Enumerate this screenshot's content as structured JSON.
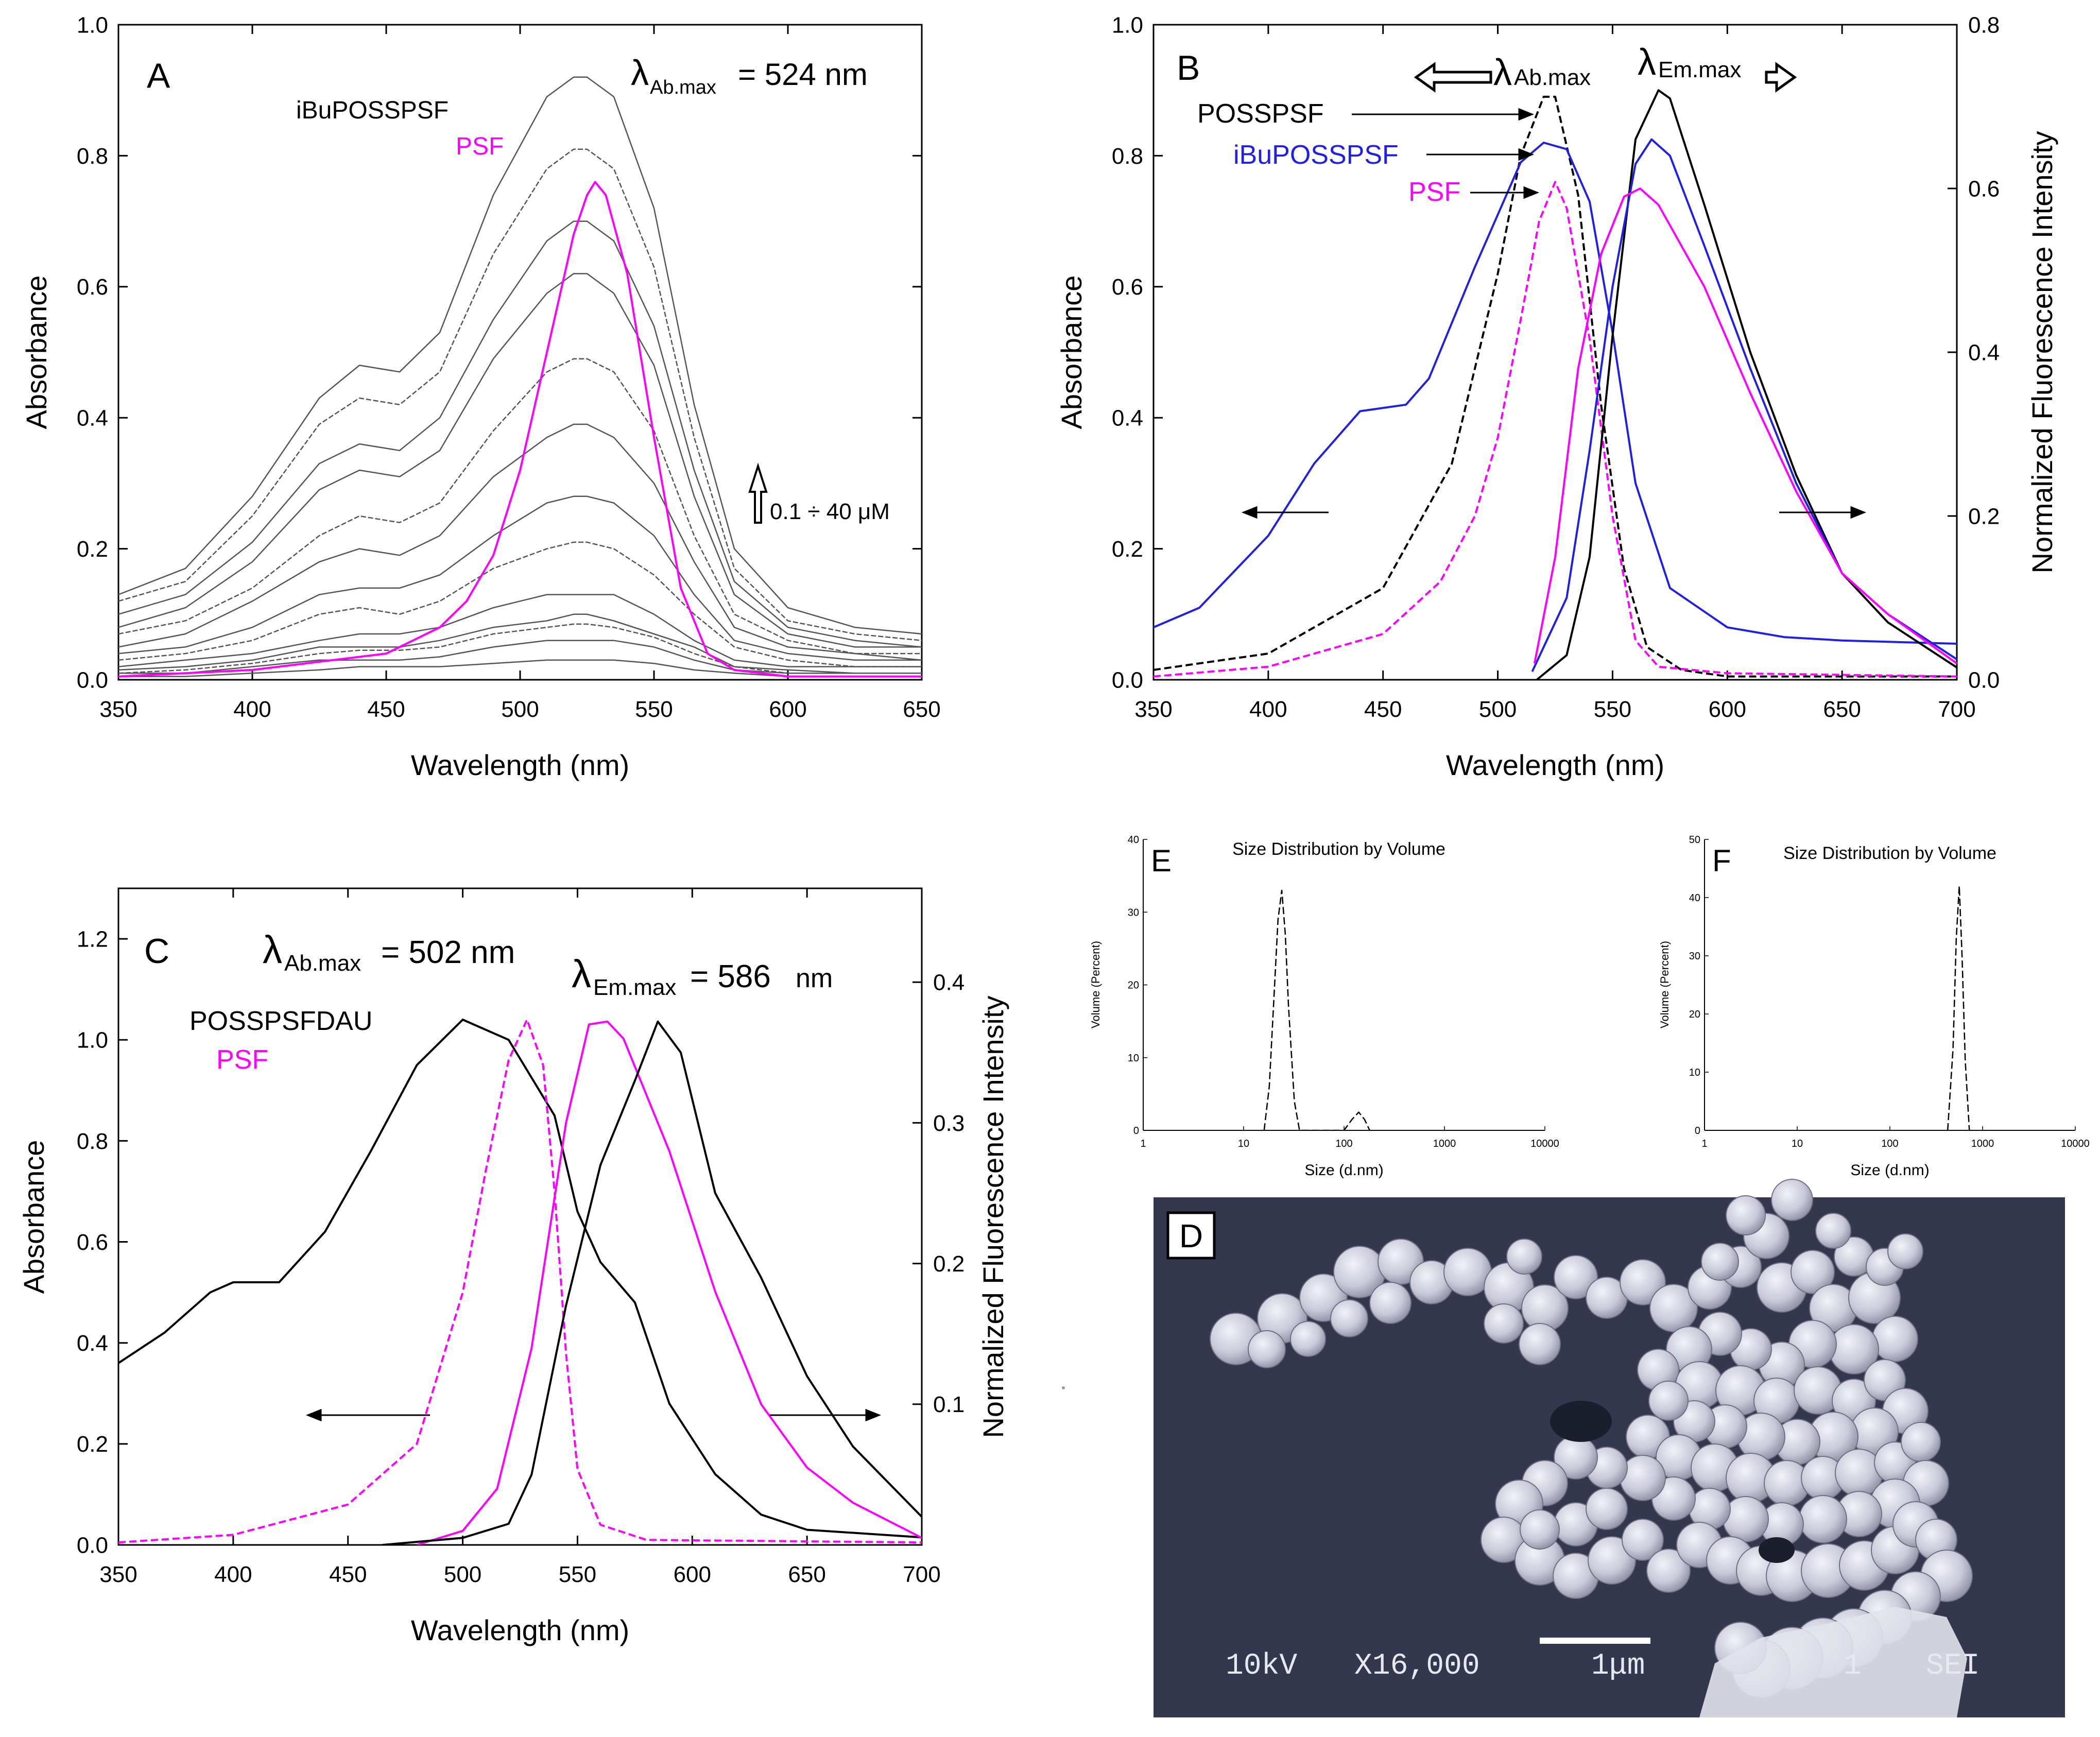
{
  "colors": {
    "black": "#000000",
    "magenta": "#ff00ff",
    "blue": "#1f1fe6",
    "gray": "#555555",
    "sem_bg": "#33384f",
    "sem_particle": "#dcdce8"
  },
  "panel_a": {
    "letter": "A",
    "lambda_symbol": "λ",
    "lambda_sub": "Ab.max",
    "lambda_value": "= 524 nm",
    "legend": [
      "iBuPOSSPSF",
      "PSF"
    ],
    "conc_label": "0.1 ÷ 40 μM"
  },
  "panel_b": {
    "letter": "B",
    "lambda_symbol": "λ",
    "ab_sub": "Ab.max",
    "em_sub": "Em.max",
    "labels": [
      "POSSPSF",
      "iBuPOSSPSF",
      "PSF"
    ]
  },
  "panel_c": {
    "letter": "C",
    "lambda_symbol": "λ",
    "ab_sub": "Ab.max",
    "ab_value": "= 502 nm",
    "em_sub": "Em.max",
    "em_value": "= 586",
    "em_unit": "nm",
    "legend": [
      "POSSPSFDAU",
      "PSF"
    ]
  },
  "panel_d": {
    "letter": "D",
    "kv": "10kV",
    "mag": "X16,000",
    "scale": "1μm",
    "num": "1",
    "mode": "SEI"
  },
  "panel_e": {
    "letter": "E"
  },
  "panel_f": {
    "letter": "F"
  },
  "chart_data": [
    {
      "id": "A",
      "type": "line",
      "title": "",
      "xlabel": "Wavelength (nm)",
      "ylabel": "Absorbance",
      "xlim": [
        350,
        650
      ],
      "ylim": [
        0.0,
        1.0
      ],
      "xticks": [
        "350",
        "400",
        "450",
        "500",
        "550",
        "600",
        "650"
      ],
      "yticks": [
        "0.0",
        "0.2",
        "0.4",
        "0.6",
        "0.8",
        "1.0"
      ],
      "x": [
        350,
        375,
        400,
        425,
        440,
        455,
        470,
        490,
        510,
        520,
        525,
        535,
        550,
        565,
        580,
        600,
        625,
        650
      ],
      "series": [
        {
          "name": "iBuPOSSPSF 40 μM",
          "color": "gray",
          "values": [
            0.13,
            0.17,
            0.28,
            0.43,
            0.48,
            0.47,
            0.53,
            0.74,
            0.89,
            0.92,
            0.92,
            0.89,
            0.72,
            0.42,
            0.2,
            0.11,
            0.08,
            0.07
          ]
        },
        {
          "name": "iBuPOSSPSF",
          "color": "gray",
          "values": [
            0.12,
            0.15,
            0.25,
            0.39,
            0.43,
            0.42,
            0.47,
            0.65,
            0.78,
            0.81,
            0.81,
            0.78,
            0.63,
            0.37,
            0.17,
            0.09,
            0.07,
            0.06
          ]
        },
        {
          "name": "iBuPOSSPSF",
          "color": "gray",
          "values": [
            0.1,
            0.13,
            0.21,
            0.33,
            0.36,
            0.35,
            0.4,
            0.55,
            0.67,
            0.7,
            0.7,
            0.67,
            0.54,
            0.32,
            0.15,
            0.08,
            0.06,
            0.05
          ]
        },
        {
          "name": "iBuPOSSPSF",
          "color": "gray",
          "values": [
            0.08,
            0.11,
            0.18,
            0.29,
            0.32,
            0.31,
            0.35,
            0.49,
            0.59,
            0.62,
            0.62,
            0.59,
            0.48,
            0.28,
            0.13,
            0.07,
            0.05,
            0.05
          ]
        },
        {
          "name": "iBuPOSSPSF",
          "color": "gray",
          "values": [
            0.07,
            0.09,
            0.14,
            0.22,
            0.25,
            0.24,
            0.27,
            0.38,
            0.47,
            0.49,
            0.49,
            0.47,
            0.38,
            0.22,
            0.1,
            0.06,
            0.04,
            0.04
          ]
        },
        {
          "name": "iBuPOSSPSF",
          "color": "gray",
          "values": [
            0.05,
            0.07,
            0.12,
            0.18,
            0.2,
            0.19,
            0.22,
            0.31,
            0.37,
            0.39,
            0.39,
            0.37,
            0.3,
            0.18,
            0.08,
            0.05,
            0.04,
            0.03
          ]
        },
        {
          "name": "iBuPOSSPSF",
          "color": "gray",
          "values": [
            0.04,
            0.05,
            0.08,
            0.13,
            0.14,
            0.14,
            0.16,
            0.22,
            0.27,
            0.28,
            0.28,
            0.27,
            0.22,
            0.13,
            0.06,
            0.04,
            0.03,
            0.03
          ]
        },
        {
          "name": "iBuPOSSPSF",
          "color": "gray",
          "values": [
            0.03,
            0.04,
            0.06,
            0.1,
            0.11,
            0.1,
            0.12,
            0.17,
            0.2,
            0.21,
            0.21,
            0.2,
            0.16,
            0.1,
            0.05,
            0.03,
            0.02,
            0.02
          ]
        },
        {
          "name": "iBuPOSSPSF",
          "color": "gray",
          "values": [
            0.02,
            0.03,
            0.04,
            0.06,
            0.07,
            0.07,
            0.08,
            0.11,
            0.13,
            0.13,
            0.13,
            0.13,
            0.1,
            0.06,
            0.03,
            0.02,
            0.02,
            0.02
          ]
        },
        {
          "name": "iBuPOSSPSF",
          "color": "gray",
          "values": [
            0.015,
            0.02,
            0.03,
            0.05,
            0.05,
            0.05,
            0.06,
            0.08,
            0.09,
            0.1,
            0.1,
            0.09,
            0.07,
            0.05,
            0.02,
            0.015,
            0.01,
            0.01
          ]
        },
        {
          "name": "iBuPOSSPSF",
          "color": "gray",
          "values": [
            0.01,
            0.015,
            0.025,
            0.04,
            0.045,
            0.045,
            0.05,
            0.07,
            0.08,
            0.085,
            0.085,
            0.08,
            0.065,
            0.04,
            0.02,
            0.01,
            0.01,
            0.01
          ]
        },
        {
          "name": "iBuPOSSPSF",
          "color": "gray",
          "values": [
            0.01,
            0.01,
            0.02,
            0.03,
            0.03,
            0.03,
            0.035,
            0.05,
            0.06,
            0.06,
            0.06,
            0.06,
            0.05,
            0.03,
            0.015,
            0.01,
            0.01,
            0.01
          ]
        },
        {
          "name": "iBuPOSSPSF 0.1 μM",
          "color": "gray",
          "values": [
            0.005,
            0.005,
            0.01,
            0.015,
            0.02,
            0.02,
            0.02,
            0.025,
            0.03,
            0.03,
            0.03,
            0.03,
            0.025,
            0.015,
            0.01,
            0.005,
            0.005,
            0.005
          ]
        },
        {
          "name": "PSF",
          "color": "magenta",
          "x": [
            350,
            400,
            450,
            470,
            480,
            490,
            500,
            510,
            520,
            525,
            528,
            532,
            540,
            550,
            560,
            570,
            580,
            600,
            650
          ],
          "values": [
            0.005,
            0.015,
            0.04,
            0.08,
            0.12,
            0.19,
            0.32,
            0.5,
            0.68,
            0.74,
            0.76,
            0.74,
            0.62,
            0.37,
            0.14,
            0.04,
            0.015,
            0.005,
            0.005
          ]
        }
      ]
    },
    {
      "id": "B",
      "type": "line",
      "xlabel": "Wavelength (nm)",
      "ylabel": "Absorbance",
      "y2label": "Normalized Fluorescence Intensity",
      "xlim": [
        350,
        700
      ],
      "ylim": [
        0.0,
        1.0
      ],
      "y2lim": [
        0.0,
        0.8
      ],
      "xticks": [
        "350",
        "400",
        "450",
        "500",
        "550",
        "600",
        "650",
        "700"
      ],
      "yticks": [
        "0.0",
        "0.2",
        "0.4",
        "0.6",
        "0.8",
        "1.0"
      ],
      "y2ticks": [
        "0.0",
        "0.2",
        "0.4",
        "0.6",
        "0.8"
      ],
      "series": [
        {
          "name": "POSSPSF absorbance",
          "color": "black",
          "dash": true,
          "x": [
            350,
            400,
            450,
            480,
            500,
            510,
            520,
            525,
            535,
            545,
            555,
            565,
            580,
            600,
            700
          ],
          "values": [
            0.015,
            0.04,
            0.14,
            0.33,
            0.62,
            0.8,
            0.89,
            0.89,
            0.74,
            0.42,
            0.17,
            0.05,
            0.015,
            0.005,
            0.005
          ]
        },
        {
          "name": "iBuPOSSPSF absorbance",
          "color": "blue",
          "x": [
            350,
            370,
            400,
            420,
            440,
            460,
            470,
            490,
            510,
            520,
            530,
            540,
            550,
            560,
            575,
            600,
            625,
            650,
            700
          ],
          "values": [
            0.08,
            0.11,
            0.22,
            0.33,
            0.41,
            0.42,
            0.46,
            0.63,
            0.79,
            0.82,
            0.81,
            0.73,
            0.53,
            0.3,
            0.14,
            0.08,
            0.065,
            0.06,
            0.055
          ]
        },
        {
          "name": "PSF absorbance",
          "color": "magenta",
          "dash": true,
          "x": [
            350,
            400,
            450,
            475,
            490,
            500,
            510,
            518,
            525,
            530,
            540,
            550,
            560,
            570,
            600,
            700
          ],
          "values": [
            0.005,
            0.02,
            0.07,
            0.15,
            0.25,
            0.37,
            0.55,
            0.7,
            0.76,
            0.72,
            0.52,
            0.25,
            0.06,
            0.02,
            0.01,
            0.005
          ]
        },
        {
          "name": "POSSPSF fluorescence",
          "color": "black",
          "axis": "right",
          "x": [
            517,
            530,
            540,
            550,
            560,
            570,
            575,
            590,
            610,
            630,
            650,
            670,
            700
          ],
          "values": [
            0.0,
            0.03,
            0.15,
            0.42,
            0.66,
            0.72,
            0.71,
            0.58,
            0.4,
            0.25,
            0.13,
            0.07,
            0.015
          ]
        },
        {
          "name": "iBuPOSSPSF fluorescence",
          "color": "blue",
          "axis": "right",
          "x": [
            515,
            530,
            540,
            550,
            560,
            567,
            575,
            590,
            610,
            630,
            650,
            670,
            700
          ],
          "values": [
            0.01,
            0.1,
            0.28,
            0.48,
            0.63,
            0.66,
            0.64,
            0.53,
            0.38,
            0.24,
            0.13,
            0.08,
            0.025
          ]
        },
        {
          "name": "PSF fluorescence",
          "color": "magenta",
          "axis": "right",
          "x": [
            516,
            525,
            535,
            545,
            555,
            562,
            570,
            590,
            610,
            630,
            650,
            670,
            700
          ],
          "values": [
            0.02,
            0.15,
            0.38,
            0.52,
            0.59,
            0.6,
            0.58,
            0.48,
            0.35,
            0.23,
            0.13,
            0.08,
            0.02
          ]
        }
      ]
    },
    {
      "id": "C",
      "type": "line",
      "xlabel": "Wavelength (nm)",
      "ylabel": "Absorbance",
      "y2label": "Normalized Fluorescence Intensity",
      "xlim": [
        350,
        700
      ],
      "ylim": [
        0.0,
        1.3
      ],
      "y2lim": [
        0.0,
        0.4667
      ],
      "xticks": [
        "350",
        "400",
        "450",
        "500",
        "550",
        "600",
        "650",
        "700"
      ],
      "yticks": [
        "0.0",
        "0.2",
        "0.4",
        "0.6",
        "0.8",
        "1.0",
        "1.2"
      ],
      "y2ticks": [
        "0.1",
        "0.2",
        "0.3",
        "0.4"
      ],
      "series": [
        {
          "name": "POSSPSFDAU absorbance",
          "color": "black",
          "x": [
            350,
            370,
            390,
            400,
            420,
            440,
            460,
            480,
            500,
            520,
            540,
            550,
            560,
            575,
            590,
            610,
            630,
            650,
            700
          ],
          "values": [
            0.36,
            0.42,
            0.5,
            0.52,
            0.52,
            0.62,
            0.78,
            0.95,
            1.04,
            1.0,
            0.85,
            0.66,
            0.56,
            0.48,
            0.28,
            0.14,
            0.06,
            0.03,
            0.015
          ]
        },
        {
          "name": "PSF absorbance",
          "color": "magenta",
          "dash": true,
          "x": [
            350,
            400,
            450,
            480,
            500,
            510,
            520,
            528,
            535,
            540,
            545,
            550,
            560,
            580,
            700
          ],
          "values": [
            0.005,
            0.02,
            0.08,
            0.2,
            0.5,
            0.74,
            0.96,
            1.04,
            0.95,
            0.7,
            0.38,
            0.15,
            0.04,
            0.01,
            0.005
          ]
        },
        {
          "name": "PSF fluorescence",
          "color": "magenta",
          "axis": "right",
          "x": [
            480,
            500,
            515,
            530,
            545,
            555,
            563,
            570,
            590,
            610,
            630,
            650,
            670,
            700
          ],
          "values": [
            0.0,
            0.01,
            0.04,
            0.14,
            0.3,
            0.37,
            0.372,
            0.36,
            0.28,
            0.18,
            0.1,
            0.055,
            0.03,
            0.005
          ]
        },
        {
          "name": "POSSPSFDAU fluorescence",
          "color": "black",
          "axis": "right",
          "x": [
            465,
            500,
            520,
            530,
            545,
            560,
            575,
            585,
            595,
            610,
            630,
            650,
            670,
            700
          ],
          "values": [
            0.0,
            0.005,
            0.015,
            0.05,
            0.17,
            0.27,
            0.33,
            0.372,
            0.35,
            0.25,
            0.19,
            0.12,
            0.07,
            0.02
          ]
        }
      ]
    },
    {
      "id": "E",
      "type": "line",
      "title": "Size Distribution by Volume",
      "xlabel": "Size (d.nm)",
      "ylabel": "Volume (Percent)",
      "xscale": "log",
      "xlim": [
        1,
        10000
      ],
      "ylim": [
        0,
        40
      ],
      "xticks": [
        "1",
        "10",
        "100",
        "1000",
        "10000"
      ],
      "yticks": [
        "0",
        "10",
        "20",
        "30",
        "40"
      ],
      "series": [
        {
          "name": "Volume",
          "color": "black",
          "dash": true,
          "x": [
            16,
            18,
            20,
            22,
            24,
            26,
            28,
            32,
            36,
            100,
            120,
            140,
            160,
            180
          ],
          "values": [
            0,
            6,
            18,
            29,
            33,
            27,
            17,
            4,
            0,
            0,
            1.5,
            2.5,
            1.5,
            0
          ]
        }
      ]
    },
    {
      "id": "F",
      "type": "line",
      "title": "Size Distribution by Volume",
      "xlabel": "Size (d.nm)",
      "ylabel": "Volume (Percent)",
      "xscale": "log",
      "xlim": [
        1,
        10000
      ],
      "ylim": [
        0,
        50
      ],
      "xticks": [
        "1",
        "10",
        "100",
        "1000",
        "10000"
      ],
      "yticks": [
        "0",
        "10",
        "20",
        "30",
        "40",
        "50"
      ],
      "series": [
        {
          "name": "Volume",
          "color": "black",
          "dash": true,
          "x": [
            420,
            480,
            520,
            560,
            600,
            650,
            720
          ],
          "values": [
            0,
            14,
            33,
            42,
            30,
            12,
            0
          ]
        }
      ]
    }
  ]
}
